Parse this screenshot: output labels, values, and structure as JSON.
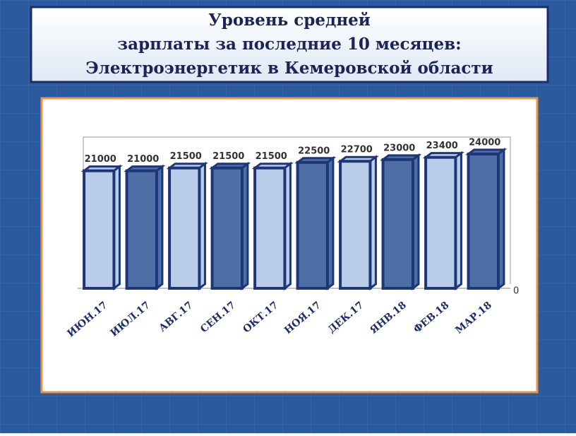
{
  "chart_data": {
    "type": "bar3d",
    "title": [
      "Уровень средней",
      "зарплаты за  последние 10 месяцев:",
      "Электроэнергетик в Кемеровской области"
    ],
    "categories": [
      "ИЮН.17",
      "ИЮЛ.17",
      "АВГ.17",
      "СЕН.17",
      "ОКТ.17",
      "НОЯ.17",
      "ДЕК.17",
      "ЯНВ.18",
      "ФЕВ.18",
      "МАР.18"
    ],
    "values": [
      21000,
      21000,
      21500,
      21500,
      21500,
      22500,
      22700,
      23000,
      23400,
      24000
    ],
    "colors": [
      "#b9cdea",
      "#4e6ea6",
      "#b9cdea",
      "#4e6ea6",
      "#b9cdea",
      "#4e6ea6",
      "#b9cdea",
      "#4e6ea6",
      "#b9cdea",
      "#4e6ea6"
    ],
    "edge_color": "#1c3677",
    "ylim": [
      0,
      25000
    ],
    "yticks": [
      0
    ]
  }
}
